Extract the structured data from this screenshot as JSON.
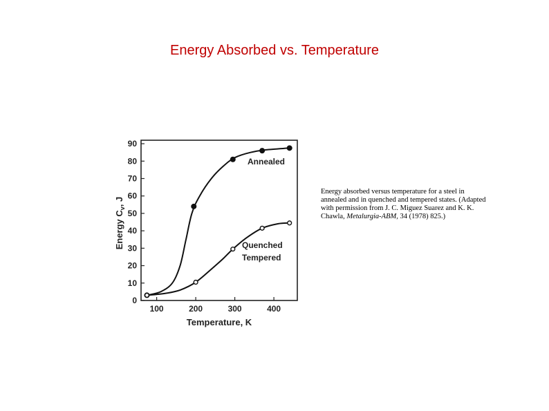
{
  "slide": {
    "title": "Energy Absorbed vs. Temperature"
  },
  "caption": {
    "text_before": "Energy absorbed versus temperature for a steel in annealed and in quenched and tempered states. (Adapted with permission from J. C. Miguez Suarez and K. K. Chawla, ",
    "journal": "Metalurgia-ABM,",
    "text_after": " 34 (1978) 825.)"
  },
  "chart_data": {
    "type": "line",
    "xlabel": "Temperature, K",
    "ylabel": "Energy C",
    "ylabel_sub": "v",
    "ylabel_unit": ", J",
    "xlim": [
      60,
      460
    ],
    "ylim": [
      0,
      92
    ],
    "xticks": [
      100,
      200,
      300,
      400
    ],
    "yticks": [
      0,
      10,
      20,
      30,
      40,
      50,
      60,
      70,
      80,
      90
    ],
    "grid": false,
    "series": [
      {
        "name": "Annealed",
        "marker": "filled-circle",
        "points": [
          [
            75,
            3
          ],
          [
            195,
            54
          ],
          [
            295,
            81
          ],
          [
            370,
            86
          ],
          [
            440,
            87.5
          ]
        ],
        "curve": [
          [
            75,
            3
          ],
          [
            110,
            5
          ],
          [
            140,
            10
          ],
          [
            160,
            20
          ],
          [
            175,
            35
          ],
          [
            190,
            50
          ],
          [
            210,
            60
          ],
          [
            240,
            70
          ],
          [
            270,
            77
          ],
          [
            300,
            82
          ],
          [
            340,
            85
          ],
          [
            380,
            86.5
          ],
          [
            440,
            87.5
          ]
        ]
      },
      {
        "name": "Quenched Tempered",
        "label_lines": [
          "Quenched",
          "Tempered"
        ],
        "marker": "open-circle",
        "points": [
          [
            75,
            3
          ],
          [
            200,
            10.5
          ],
          [
            295,
            29.5
          ],
          [
            370,
            41.5
          ],
          [
            440,
            44.5
          ]
        ],
        "curve": [
          [
            75,
            3
          ],
          [
            120,
            4
          ],
          [
            160,
            6
          ],
          [
            200,
            10.5
          ],
          [
            240,
            18
          ],
          [
            270,
            24
          ],
          [
            295,
            29.5
          ],
          [
            330,
            36
          ],
          [
            370,
            41.5
          ],
          [
            410,
            44
          ],
          [
            440,
            44.5
          ]
        ]
      }
    ]
  }
}
